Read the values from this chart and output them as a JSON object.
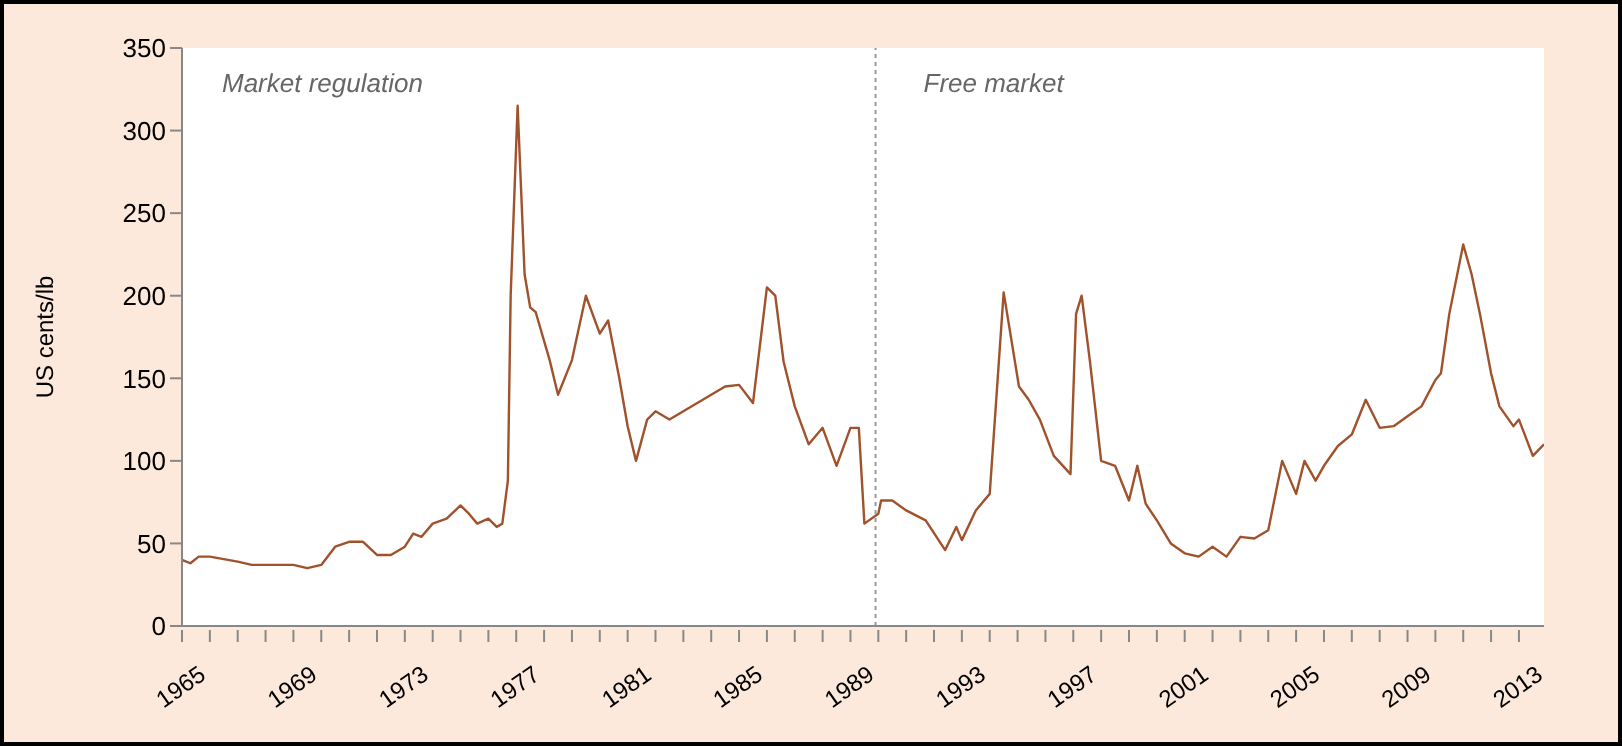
{
  "chart_data": {
    "type": "line",
    "ylabel": "US cents/lb",
    "annotations": [
      "Market regulation",
      "Free market"
    ],
    "x": [
      1965,
      1965.3,
      1965.6,
      1966,
      1967,
      1967.5,
      1968,
      1969,
      1969.5,
      1970,
      1970.5,
      1971,
      1971.5,
      1972,
      1972.5,
      1973,
      1973.3,
      1973.6,
      1974,
      1974.5,
      1975,
      1975.3,
      1975.6,
      1976,
      1976.3,
      1976.5,
      1976.7,
      1976.8,
      1977.05,
      1977.3,
      1977.5,
      1977.7,
      1978.2,
      1978.5,
      1979,
      1979.5,
      1980,
      1980.3,
      1980.7,
      1981,
      1981.3,
      1981.7,
      1982,
      1982.5,
      1983,
      1984,
      1984.5,
      1985,
      1985.5,
      1986,
      1986.3,
      1986.6,
      1987,
      1987.5,
      1988,
      1988.5,
      1989,
      1989.3,
      1989.5,
      1990,
      1990.1,
      1990.5,
      1991,
      1991.7,
      1992.4,
      1992.8,
      1993,
      1993.5,
      1994,
      1994.5,
      1995.05,
      1995.4,
      1995.8,
      1996.3,
      1996.9,
      1997.1,
      1997.3,
      1997.6,
      1998,
      1998.5,
      1999,
      1999.3,
      1999.6,
      2000,
      2000.5,
      2001,
      2001.5,
      2002,
      2002.5,
      2003,
      2003.5,
      2004,
      2004.5,
      2005,
      2005.3,
      2005.7,
      2006,
      2006.5,
      2007,
      2007.5,
      2008,
      2008.5,
      2009,
      2009.5,
      2010,
      2010.2,
      2010.5,
      2011,
      2011.3,
      2011.6,
      2012,
      2012.3,
      2012.8,
      2013,
      2013.5,
      2013.9
    ],
    "values": [
      40,
      38,
      42,
      42,
      39,
      37,
      37,
      37,
      35,
      37,
      48,
      51,
      51,
      43,
      43,
      48,
      56,
      54,
      62,
      65,
      73,
      68,
      62,
      65,
      60,
      62,
      88,
      200,
      315,
      213,
      193,
      190,
      161,
      140,
      161,
      200,
      177,
      185,
      150,
      121,
      100,
      125,
      130,
      125,
      130,
      140,
      145,
      146,
      135,
      205,
      200,
      160,
      133,
      110,
      120,
      97,
      120,
      120,
      62,
      68,
      76,
      76,
      70,
      64,
      46,
      60,
      52,
      70,
      80,
      202,
      145,
      137,
      125,
      103,
      92,
      189,
      200,
      160,
      100,
      97,
      76,
      97,
      74,
      64,
      50,
      44,
      42,
      48,
      42,
      54,
      53,
      58,
      100,
      80,
      100,
      88,
      97,
      109,
      116,
      137,
      120,
      121,
      127,
      133,
      149,
      153,
      189,
      231,
      213,
      189,
      153,
      133,
      121,
      125,
      103,
      110
    ],
    "color": "#a0522d",
    "xlim": [
      1965,
      2013.9
    ],
    "ylim": [
      0,
      350
    ],
    "xticks": [
      1965,
      {
        "value": 1966,
        "label": null
      },
      {
        "value": 1967,
        "label": null
      },
      {
        "value": 1968,
        "label": null
      },
      1969,
      {
        "value": 1970,
        "label": null
      },
      {
        "value": 1971,
        "label": null
      },
      {
        "value": 1972,
        "label": null
      },
      1973,
      {
        "value": 1974,
        "label": null
      },
      {
        "value": 1975,
        "label": null
      },
      {
        "value": 1976,
        "label": null
      },
      1977,
      {
        "value": 1978,
        "label": null
      },
      {
        "value": 1979,
        "label": null
      },
      {
        "value": 1980,
        "label": null
      },
      1981,
      {
        "value": 1982,
        "label": null
      },
      {
        "value": 1983,
        "label": null
      },
      {
        "value": 1984,
        "label": null
      },
      1985,
      {
        "value": 1986,
        "label": null
      },
      {
        "value": 1987,
        "label": null
      },
      {
        "value": 1988,
        "label": null
      },
      1989,
      {
        "value": 1990,
        "label": null
      },
      {
        "value": 1991,
        "label": null
      },
      {
        "value": 1992,
        "label": null
      },
      1993,
      {
        "value": 1994,
        "label": null
      },
      {
        "value": 1995,
        "label": null
      },
      {
        "value": 1996,
        "label": null
      },
      1997,
      {
        "value": 1998,
        "label": null
      },
      {
        "value": 1999,
        "label": null
      },
      {
        "value": 2000,
        "label": null
      },
      2001,
      {
        "value": 2002,
        "label": null
      },
      {
        "value": 2003,
        "label": null
      },
      {
        "value": 2004,
        "label": null
      },
      2005,
      {
        "value": 2006,
        "label": null
      },
      {
        "value": 2007,
        "label": null
      },
      {
        "value": 2008,
        "label": null
      },
      2009,
      {
        "value": 2010,
        "label": null
      },
      {
        "value": 2011,
        "label": null
      },
      {
        "value": 2012,
        "label": null
      },
      2013
    ],
    "yticks": [
      0,
      50,
      100,
      150,
      200,
      250,
      300,
      350
    ],
    "ref_lines": [
      {
        "axis": "x",
        "value": 1989.9,
        "color": "#999999",
        "line_style": "dotted"
      }
    ]
  }
}
